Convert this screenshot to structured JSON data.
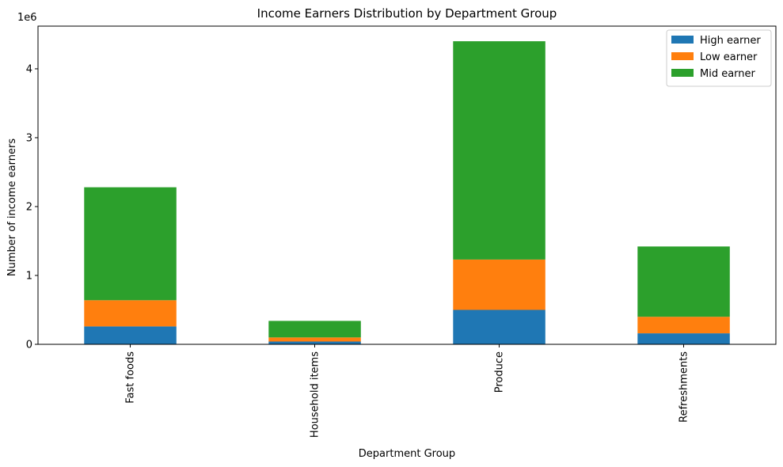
{
  "chart_data": {
    "type": "bar",
    "stacked": true,
    "title": "Income Earners Distribution by Department Group",
    "xlabel": "Department Group",
    "ylabel": "Number of income earners",
    "y_scale_label": "1e6",
    "ylim": [
      0,
      4.62
    ],
    "yticks": [
      0,
      1,
      2,
      3,
      4
    ],
    "grid": false,
    "legend_position": "top-right",
    "categories": [
      "Fast foods",
      "Household items",
      "Produce",
      "Refreshments"
    ],
    "series": [
      {
        "name": "High earner",
        "color": "#1f77b4",
        "values": [
          0.26,
          0.04,
          0.5,
          0.16
        ]
      },
      {
        "name": "Low earner",
        "color": "#ff7f0e",
        "values": [
          0.38,
          0.06,
          0.73,
          0.24
        ]
      },
      {
        "name": "Mid earner",
        "color": "#2ca02c",
        "values": [
          1.64,
          0.24,
          3.17,
          1.02
        ]
      }
    ]
  }
}
